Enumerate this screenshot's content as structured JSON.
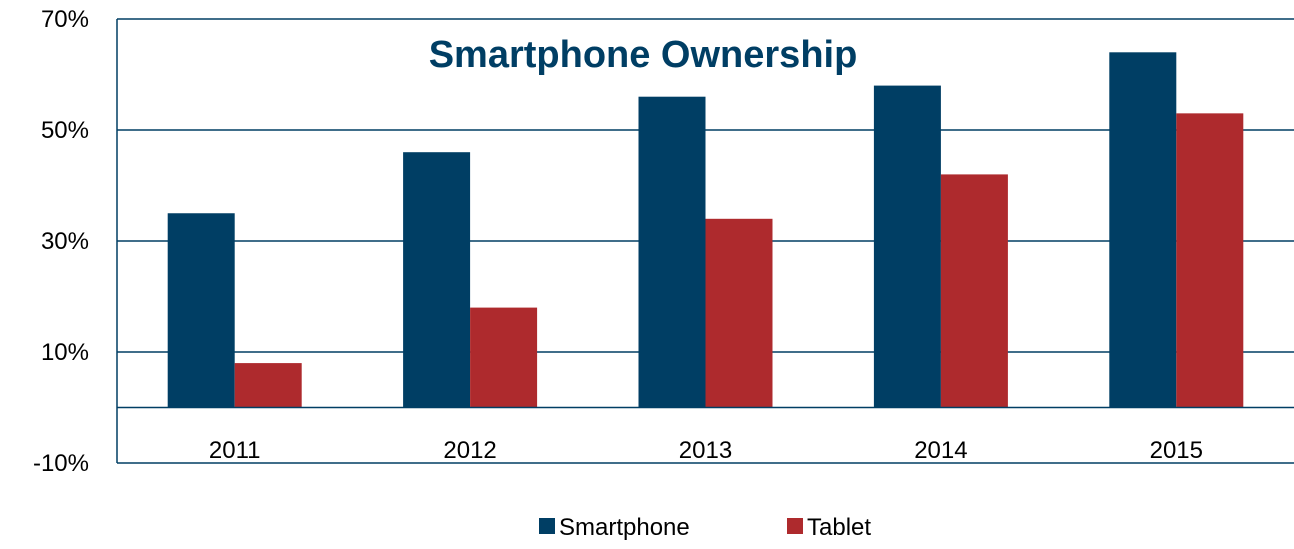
{
  "chart_data": {
    "type": "bar",
    "title": "Smartphone Ownership",
    "categories": [
      "2011",
      "2012",
      "2013",
      "2014",
      "2015"
    ],
    "series": [
      {
        "name": "Smartphone",
        "color": "#003e64",
        "values": [
          35,
          46,
          56,
          58,
          64
        ]
      },
      {
        "name": "Tablet",
        "color": "#ae2a2d",
        "values": [
          8,
          18,
          34,
          42,
          53
        ]
      }
    ],
    "xlabel": "",
    "ylabel": "",
    "ylim": [
      -10,
      70
    ],
    "yticks": [
      -10,
      10,
      30,
      50,
      70
    ],
    "ytick_labels": [
      "-10%",
      "10%",
      "30%",
      "50%",
      "70%"
    ],
    "grid": true,
    "legend_position": "bottom-center",
    "title_color": "#003e64",
    "axis_color": "#003e64"
  }
}
